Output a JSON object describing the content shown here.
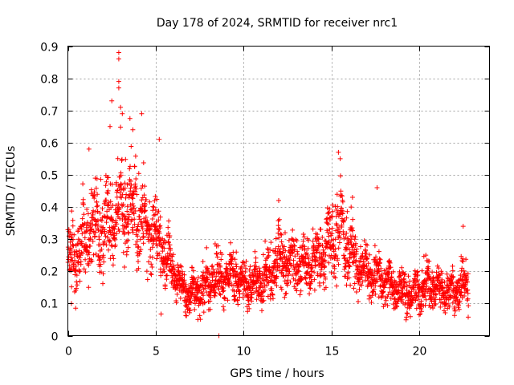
{
  "chart_data": {
    "type": "scatter",
    "title": "Day 178 of 2024, SRMTID for receiver nrc1",
    "xlabel": "GPS time / hours",
    "ylabel": "SRMTID / TECUs",
    "xlim": [
      0,
      24.0
    ],
    "ylim": [
      0,
      0.9
    ],
    "xticks": [
      0,
      5,
      10,
      15,
      20
    ],
    "yticks": [
      0,
      0.1,
      0.2,
      0.3,
      0.4,
      0.5,
      0.6,
      0.7,
      0.8,
      0.9
    ],
    "grid": true,
    "marker": "+",
    "series": [
      {
        "name": "SRMTID",
        "color": "#ff0000",
        "trend": {
          "x": [
            0,
            0.5,
            1,
            1.5,
            2,
            2.5,
            3,
            3.5,
            4,
            4.5,
            5,
            5.5,
            6,
            6.5,
            7,
            7.5,
            8,
            8.5,
            9,
            9.5,
            10,
            10.5,
            11,
            11.5,
            12,
            12.5,
            13,
            13.5,
            14,
            14.5,
            15,
            15.5,
            16,
            16.5,
            17,
            17.5,
            18,
            18.5,
            19,
            19.5,
            20,
            20.5,
            21,
            21.5,
            22,
            22.5,
            22.8
          ],
          "y": [
            0.24,
            0.27,
            0.3,
            0.33,
            0.34,
            0.36,
            0.4,
            0.4,
            0.37,
            0.33,
            0.32,
            0.25,
            0.2,
            0.14,
            0.13,
            0.14,
            0.16,
            0.18,
            0.19,
            0.18,
            0.16,
            0.16,
            0.17,
            0.2,
            0.25,
            0.23,
            0.22,
            0.21,
            0.23,
            0.26,
            0.29,
            0.32,
            0.27,
            0.22,
            0.2,
            0.18,
            0.17,
            0.15,
            0.14,
            0.12,
            0.15,
            0.16,
            0.15,
            0.14,
            0.14,
            0.15,
            0.15
          ],
          "spread": [
            0.08,
            0.1,
            0.1,
            0.11,
            0.12,
            0.12,
            0.12,
            0.12,
            0.12,
            0.1,
            0.1,
            0.08,
            0.06,
            0.05,
            0.05,
            0.05,
            0.06,
            0.06,
            0.06,
            0.06,
            0.05,
            0.05,
            0.06,
            0.08,
            0.08,
            0.07,
            0.06,
            0.06,
            0.07,
            0.08,
            0.09,
            0.1,
            0.08,
            0.07,
            0.06,
            0.06,
            0.06,
            0.05,
            0.05,
            0.05,
            0.06,
            0.06,
            0.05,
            0.05,
            0.05,
            0.06,
            0.06
          ],
          "n_points": 2600
        },
        "notable_points": [
          {
            "x": 2.9,
            "y": 0.88
          },
          {
            "x": 2.9,
            "y": 0.86
          },
          {
            "x": 2.9,
            "y": 0.79
          },
          {
            "x": 2.9,
            "y": 0.77
          },
          {
            "x": 2.5,
            "y": 0.73
          },
          {
            "x": 3.0,
            "y": 0.71
          },
          {
            "x": 4.2,
            "y": 0.69
          },
          {
            "x": 3.1,
            "y": 0.69
          },
          {
            "x": 2.4,
            "y": 0.65
          },
          {
            "x": 3.7,
            "y": 0.64
          },
          {
            "x": 5.2,
            "y": 0.61
          },
          {
            "x": 1.2,
            "y": 0.58
          },
          {
            "x": 15.4,
            "y": 0.57
          },
          {
            "x": 15.5,
            "y": 0.55
          },
          {
            "x": 17.6,
            "y": 0.46
          },
          {
            "x": 12.0,
            "y": 0.42
          },
          {
            "x": 16.2,
            "y": 0.43
          },
          {
            "x": 22.5,
            "y": 0.34
          },
          {
            "x": 8.6,
            "y": 0.0
          },
          {
            "x": 0.2,
            "y": 0.1
          },
          {
            "x": 7.4,
            "y": 0.05
          }
        ]
      }
    ]
  }
}
